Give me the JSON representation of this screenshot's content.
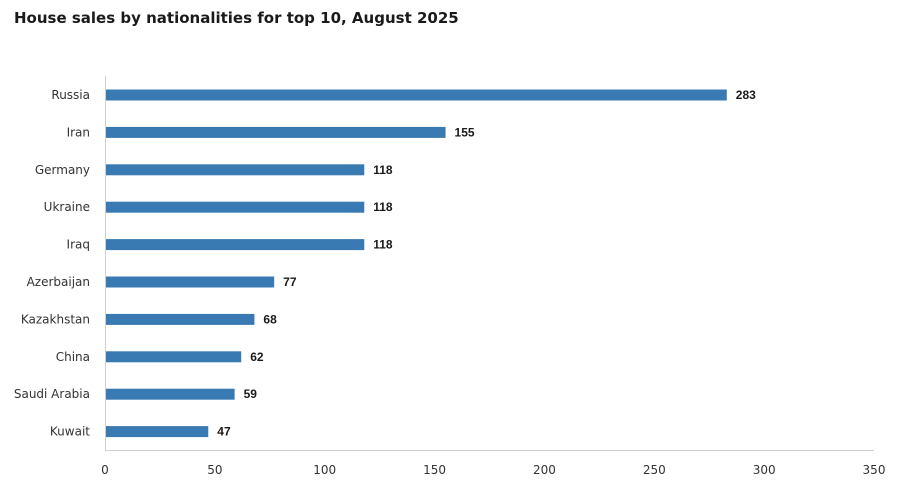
{
  "chart_data": {
    "type": "bar",
    "orientation": "horizontal",
    "title": "House sales by nationalities for top 10, August 2025",
    "categories": [
      "Russia",
      "Iran",
      "Germany",
      "Ukraine",
      "Iraq",
      "Azerbaijan",
      "Kazakhstan",
      "China",
      "Saudi Arabia",
      "Kuwait"
    ],
    "values": [
      283,
      155,
      118,
      118,
      118,
      77,
      68,
      62,
      59,
      47
    ],
    "xlim": [
      0,
      350
    ],
    "xticks": [
      0,
      50,
      100,
      150,
      200,
      250,
      300,
      350
    ],
    "xlabel": "",
    "ylabel": "",
    "grid": false,
    "data_labels": true,
    "bar_color": "#3a7ab3",
    "axis_color": "#d0d0d0"
  }
}
